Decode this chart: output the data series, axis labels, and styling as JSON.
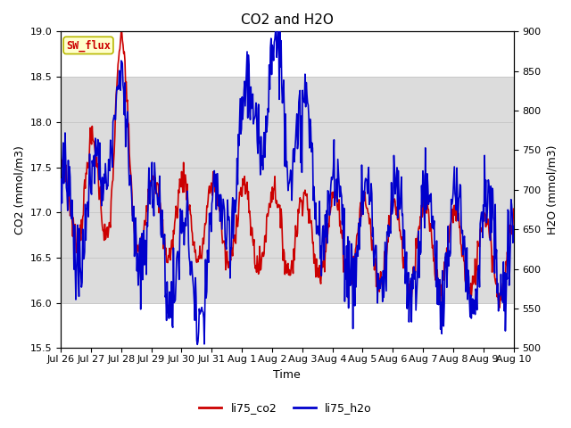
{
  "title": "CO2 and H2O",
  "xlabel": "Time",
  "ylabel_left": "CO2 (mmol/m3)",
  "ylabel_right": "H2O (mmol/m3)",
  "ylim_left": [
    15.5,
    19.0
  ],
  "ylim_right": [
    500,
    900
  ],
  "yticks_left": [
    15.5,
    16.0,
    16.5,
    17.0,
    17.5,
    18.0,
    18.5,
    19.0
  ],
  "yticks_right": [
    500,
    550,
    600,
    650,
    700,
    750,
    800,
    850,
    900
  ],
  "xtick_labels": [
    "Jul 26",
    "Jul 27",
    "Jul 28",
    "Jul 29",
    "Jul 30",
    "Jul 31",
    "Aug 1",
    "Aug 2",
    "Aug 3",
    "Aug 4",
    "Aug 5",
    "Aug 6",
    "Aug 7",
    "Aug 8",
    "Aug 9",
    "Aug 10"
  ],
  "color_co2": "#cc0000",
  "color_h2o": "#0000cc",
  "legend_label_co2": "li75_co2",
  "legend_label_h2o": "li75_h2o",
  "sw_flux_label": "SW_flux",
  "sw_flux_bg": "#ffffcc",
  "sw_flux_text_color": "#cc0000",
  "sw_flux_border": "#b8b800",
  "band_color": "#dcdcdc",
  "band_ylow": 16.0,
  "band_yhigh": 18.5,
  "background_color": "#ffffff",
  "grid_color": "#c8c8c8",
  "title_fontsize": 11,
  "axis_label_fontsize": 9,
  "tick_fontsize": 8,
  "line_width": 1.2
}
